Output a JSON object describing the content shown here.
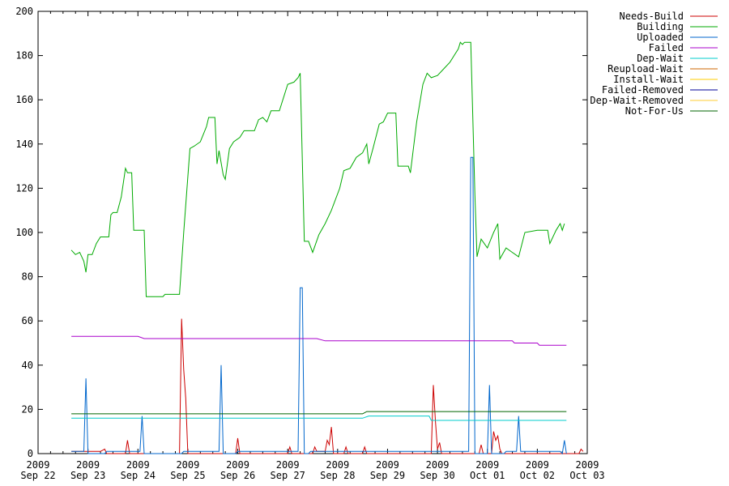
{
  "chart_data": {
    "type": "line",
    "title": "",
    "xlabel": "",
    "ylabel": "",
    "ylim": [
      0,
      200
    ],
    "xlim": [
      "2009-09-22",
      "2009-10-03"
    ],
    "grid": false,
    "legend_position": "top-right",
    "y_ticks": [
      0,
      20,
      40,
      60,
      80,
      100,
      120,
      140,
      160,
      180,
      200
    ],
    "x_ticks": [
      {
        "year": "2009",
        "label": "Sep 22",
        "date": "2009-09-22"
      },
      {
        "year": "2009",
        "label": "Sep 23",
        "date": "2009-09-23"
      },
      {
        "year": "2009",
        "label": "Sep 24",
        "date": "2009-09-24"
      },
      {
        "year": "2009",
        "label": "Sep 25",
        "date": "2009-09-25"
      },
      {
        "year": "2009",
        "label": "Sep 26",
        "date": "2009-09-26"
      },
      {
        "year": "2009",
        "label": "Sep 27",
        "date": "2009-09-27"
      },
      {
        "year": "2009",
        "label": "Sep 28",
        "date": "2009-09-28"
      },
      {
        "year": "2009",
        "label": "Sep 29",
        "date": "2009-09-29"
      },
      {
        "year": "2009",
        "label": "Sep 30",
        "date": "2009-09-30"
      },
      {
        "year": "2009",
        "label": "Oct 01",
        "date": "2009-10-01"
      },
      {
        "year": "2009",
        "label": "Oct 02",
        "date": "2009-10-02"
      },
      {
        "year": "2009",
        "label": "Oct 03",
        "date": "2009-10-03"
      }
    ],
    "series": [
      {
        "name": "Needs-Build",
        "color": "#cc0000",
        "points": [
          [
            "2009-09-22 16:00",
            1
          ],
          [
            "2009-09-23 06:00",
            1
          ],
          [
            "2009-09-23 08:00",
            2
          ],
          [
            "2009-09-23 09:00",
            0
          ],
          [
            "2009-09-23 18:00",
            0
          ],
          [
            "2009-09-23 19:00",
            6
          ],
          [
            "2009-09-23 20:00",
            0
          ],
          [
            "2009-09-24 20:00",
            0
          ],
          [
            "2009-09-24 21:00",
            61
          ],
          [
            "2009-09-24 22:00",
            38
          ],
          [
            "2009-09-24 23:00",
            25
          ],
          [
            "2009-09-25 00:00",
            0
          ],
          [
            "2009-09-25 23:00",
            0
          ],
          [
            "2009-09-26 00:00",
            7
          ],
          [
            "2009-09-26 01:00",
            0
          ],
          [
            "2009-09-27 00:00",
            0
          ],
          [
            "2009-09-27 01:00",
            3
          ],
          [
            "2009-09-27 02:00",
            0
          ],
          [
            "2009-09-27 12:00",
            0
          ],
          [
            "2009-09-27 13:00",
            3
          ],
          [
            "2009-09-27 14:00",
            1
          ],
          [
            "2009-09-27 18:00",
            1
          ],
          [
            "2009-09-27 19:00",
            6
          ],
          [
            "2009-09-27 20:00",
            4
          ],
          [
            "2009-09-27 21:00",
            12
          ],
          [
            "2009-09-27 22:00",
            0
          ],
          [
            "2009-09-28 03:00",
            0
          ],
          [
            "2009-09-28 04:00",
            3
          ],
          [
            "2009-09-28 05:00",
            0
          ],
          [
            "2009-09-28 12:00",
            0
          ],
          [
            "2009-09-28 13:00",
            3
          ],
          [
            "2009-09-28 14:00",
            0
          ],
          [
            "2009-09-29 21:00",
            0
          ],
          [
            "2009-09-29 22:00",
            31
          ],
          [
            "2009-09-29 23:00",
            15
          ],
          [
            "2009-09-30 00:00",
            2
          ],
          [
            "2009-09-30 01:00",
            5
          ],
          [
            "2009-09-30 02:00",
            0
          ],
          [
            "2009-09-30 20:00",
            0
          ],
          [
            "2009-09-30 21:00",
            4
          ],
          [
            "2009-09-30 22:00",
            0
          ],
          [
            "2009-10-01 02:00",
            0
          ],
          [
            "2009-10-01 03:00",
            10
          ],
          [
            "2009-10-01 04:00",
            6
          ],
          [
            "2009-10-01 05:00",
            8
          ],
          [
            "2009-10-01 06:00",
            2
          ],
          [
            "2009-10-01 07:00",
            0
          ],
          [
            "2009-10-02 20:00",
            0
          ],
          [
            "2009-10-02 21:00",
            2
          ],
          [
            "2009-10-02 22:00",
            1
          ]
        ]
      },
      {
        "name": "Building",
        "color": "#00aa00",
        "points": [
          [
            "2009-09-22 16:00",
            92
          ],
          [
            "2009-09-22 18:00",
            90
          ],
          [
            "2009-09-22 20:00",
            91
          ],
          [
            "2009-09-22 22:00",
            87
          ],
          [
            "2009-09-22 23:00",
            82
          ],
          [
            "2009-09-23 00:00",
            90
          ],
          [
            "2009-09-23 02:00",
            90
          ],
          [
            "2009-09-23 04:00",
            95
          ],
          [
            "2009-09-23 06:00",
            98
          ],
          [
            "2009-09-23 10:00",
            98
          ],
          [
            "2009-09-23 11:00",
            108
          ],
          [
            "2009-09-23 12:00",
            109
          ],
          [
            "2009-09-23 14:00",
            109
          ],
          [
            "2009-09-23 16:00",
            116
          ],
          [
            "2009-09-23 18:00",
            129
          ],
          [
            "2009-09-23 19:00",
            127
          ],
          [
            "2009-09-23 21:00",
            127
          ],
          [
            "2009-09-23 22:00",
            101
          ],
          [
            "2009-09-24 03:00",
            101
          ],
          [
            "2009-09-24 04:00",
            71
          ],
          [
            "2009-09-24 12:00",
            71
          ],
          [
            "2009-09-24 13:00",
            72
          ],
          [
            "2009-09-24 20:00",
            72
          ],
          [
            "2009-09-24 22:00",
            100
          ],
          [
            "2009-09-25 01:00",
            138
          ],
          [
            "2009-09-25 03:00",
            139
          ],
          [
            "2009-09-25 06:00",
            141
          ],
          [
            "2009-09-25 09:00",
            148
          ],
          [
            "2009-09-25 10:00",
            152
          ],
          [
            "2009-09-25 13:00",
            152
          ],
          [
            "2009-09-25 14:00",
            131
          ],
          [
            "2009-09-25 15:00",
            137
          ],
          [
            "2009-09-25 17:00",
            126
          ],
          [
            "2009-09-25 18:00",
            124
          ],
          [
            "2009-09-25 20:00",
            138
          ],
          [
            "2009-09-25 22:00",
            141
          ],
          [
            "2009-09-26 01:00",
            143
          ],
          [
            "2009-09-26 03:00",
            146
          ],
          [
            "2009-09-26 08:00",
            146
          ],
          [
            "2009-09-26 10:00",
            151
          ],
          [
            "2009-09-26 12:00",
            152
          ],
          [
            "2009-09-26 14:00",
            150
          ],
          [
            "2009-09-26 16:00",
            155
          ],
          [
            "2009-09-26 20:00",
            155
          ],
          [
            "2009-09-27 00:00",
            167
          ],
          [
            "2009-09-27 03:00",
            168
          ],
          [
            "2009-09-27 05:00",
            170
          ],
          [
            "2009-09-27 06:00",
            172
          ],
          [
            "2009-09-27 08:00",
            96
          ],
          [
            "2009-09-27 10:00",
            96
          ],
          [
            "2009-09-27 12:00",
            91
          ],
          [
            "2009-09-27 15:00",
            99
          ],
          [
            "2009-09-27 18:00",
            104
          ],
          [
            "2009-09-27 21:00",
            110
          ],
          [
            "2009-09-28 01:00",
            120
          ],
          [
            "2009-09-28 03:00",
            128
          ],
          [
            "2009-09-28 06:00",
            129
          ],
          [
            "2009-09-28 09:00",
            134
          ],
          [
            "2009-09-28 12:00",
            136
          ],
          [
            "2009-09-28 14:00",
            140
          ],
          [
            "2009-09-28 15:00",
            131
          ],
          [
            "2009-09-28 17:00",
            138
          ],
          [
            "2009-09-28 20:00",
            149
          ],
          [
            "2009-09-28 22:00",
            150
          ],
          [
            "2009-09-29 00:00",
            154
          ],
          [
            "2009-09-29 04:00",
            154
          ],
          [
            "2009-09-29 05:00",
            130
          ],
          [
            "2009-09-29 10:00",
            130
          ],
          [
            "2009-09-29 11:00",
            127
          ],
          [
            "2009-09-29 14:00",
            150
          ],
          [
            "2009-09-29 17:00",
            167
          ],
          [
            "2009-09-29 19:00",
            172
          ],
          [
            "2009-09-29 21:00",
            170
          ],
          [
            "2009-09-30 00:00",
            171
          ],
          [
            "2009-09-30 03:00",
            174
          ],
          [
            "2009-09-30 06:00",
            177
          ],
          [
            "2009-09-30 08:00",
            180
          ],
          [
            "2009-09-30 10:00",
            183
          ],
          [
            "2009-09-30 11:00",
            186
          ],
          [
            "2009-09-30 12:00",
            185
          ],
          [
            "2009-09-30 13:00",
            186
          ],
          [
            "2009-09-30 16:00",
            186
          ],
          [
            "2009-09-30 18:00",
            117
          ],
          [
            "2009-09-30 19:00",
            89
          ],
          [
            "2009-09-30 21:00",
            97
          ],
          [
            "2009-10-01 00:00",
            93
          ],
          [
            "2009-10-01 03:00",
            100
          ],
          [
            "2009-10-01 05:00",
            104
          ],
          [
            "2009-10-01 06:00",
            88
          ],
          [
            "2009-10-01 09:00",
            93
          ],
          [
            "2009-10-01 12:00",
            91
          ],
          [
            "2009-10-01 15:00",
            89
          ],
          [
            "2009-10-01 18:00",
            100
          ],
          [
            "2009-10-02 00:00",
            101
          ],
          [
            "2009-10-02 05:00",
            101
          ],
          [
            "2009-10-02 06:00",
            95
          ],
          [
            "2009-10-02 09:00",
            101
          ],
          [
            "2009-10-02 11:00",
            104
          ],
          [
            "2009-10-02 12:00",
            101
          ],
          [
            "2009-10-02 13:00",
            104
          ]
        ]
      },
      {
        "name": "Uploaded",
        "color": "#0066cc",
        "points": [
          [
            "2009-09-22 16:00",
            1
          ],
          [
            "2009-09-22 22:00",
            1
          ],
          [
            "2009-09-22 23:00",
            34
          ],
          [
            "2009-09-23 00:00",
            0
          ],
          [
            "2009-09-23 08:00",
            0
          ],
          [
            "2009-09-23 09:00",
            1
          ],
          [
            "2009-09-24 01:00",
            1
          ],
          [
            "2009-09-24 02:00",
            17
          ],
          [
            "2009-09-24 03:00",
            0
          ],
          [
            "2009-09-24 21:00",
            0
          ],
          [
            "2009-09-24 22:00",
            1
          ],
          [
            "2009-09-25 15:00",
            1
          ],
          [
            "2009-09-25 16:00",
            40
          ],
          [
            "2009-09-25 17:00",
            0
          ],
          [
            "2009-09-25 23:00",
            0
          ],
          [
            "2009-09-26 00:00",
            1
          ],
          [
            "2009-09-27 05:00",
            1
          ],
          [
            "2009-09-27 06:00",
            75
          ],
          [
            "2009-09-27 07:00",
            75
          ],
          [
            "2009-09-27 08:00",
            0
          ],
          [
            "2009-09-27 10:00",
            0
          ],
          [
            "2009-09-27 11:00",
            1
          ],
          [
            "2009-09-30 15:00",
            1
          ],
          [
            "2009-09-30 16:00",
            134
          ],
          [
            "2009-09-30 17:00",
            134
          ],
          [
            "2009-09-30 18:00",
            0
          ],
          [
            "2009-10-01 00:00",
            0
          ],
          [
            "2009-10-01 01:00",
            31
          ],
          [
            "2009-10-01 02:00",
            0
          ],
          [
            "2009-10-01 08:00",
            0
          ],
          [
            "2009-10-01 09:00",
            1
          ],
          [
            "2009-10-01 14:00",
            1
          ],
          [
            "2009-10-01 15:00",
            17
          ],
          [
            "2009-10-01 16:00",
            1
          ],
          [
            "2009-10-02 08:00",
            1
          ],
          [
            "2009-10-02 11:00",
            1
          ],
          [
            "2009-10-02 12:00",
            0
          ],
          [
            "2009-10-02 13:00",
            6
          ],
          [
            "2009-10-02 14:00",
            0
          ]
        ]
      },
      {
        "name": "Failed",
        "color": "#aa00cc",
        "points": [
          [
            "2009-09-22 16:00",
            53
          ],
          [
            "2009-09-24 00:00",
            53
          ],
          [
            "2009-09-24 03:00",
            52
          ],
          [
            "2009-09-27 14:00",
            52
          ],
          [
            "2009-09-27 18:00",
            51
          ],
          [
            "2009-10-01 12:00",
            51
          ],
          [
            "2009-10-01 13:00",
            50
          ],
          [
            "2009-10-02 00:00",
            50
          ],
          [
            "2009-10-02 01:00",
            49
          ],
          [
            "2009-10-02 14:00",
            49
          ]
        ]
      },
      {
        "name": "Dep-Wait",
        "color": "#00cccc",
        "points": [
          [
            "2009-09-22 16:00",
            16
          ],
          [
            "2009-09-28 12:00",
            16
          ],
          [
            "2009-09-28 15:00",
            17
          ],
          [
            "2009-09-29 20:00",
            17
          ],
          [
            "2009-09-29 21:00",
            15
          ],
          [
            "2009-10-02 14:00",
            15
          ]
        ]
      },
      {
        "name": "Reupload-Wait",
        "color": "#cc6600",
        "points": []
      },
      {
        "name": "Install-Wait",
        "color": "#ffcc00",
        "points": []
      },
      {
        "name": "Failed-Removed",
        "color": "#000099",
        "points": []
      },
      {
        "name": "Dep-Wait-Removed",
        "color": "#ffcc33",
        "points": []
      },
      {
        "name": "Not-For-Us",
        "color": "#006600",
        "points": [
          [
            "2009-09-22 16:00",
            18
          ],
          [
            "2009-09-28 12:00",
            18
          ],
          [
            "2009-09-28 14:00",
            19
          ],
          [
            "2009-10-02 14:00",
            19
          ]
        ]
      }
    ]
  }
}
